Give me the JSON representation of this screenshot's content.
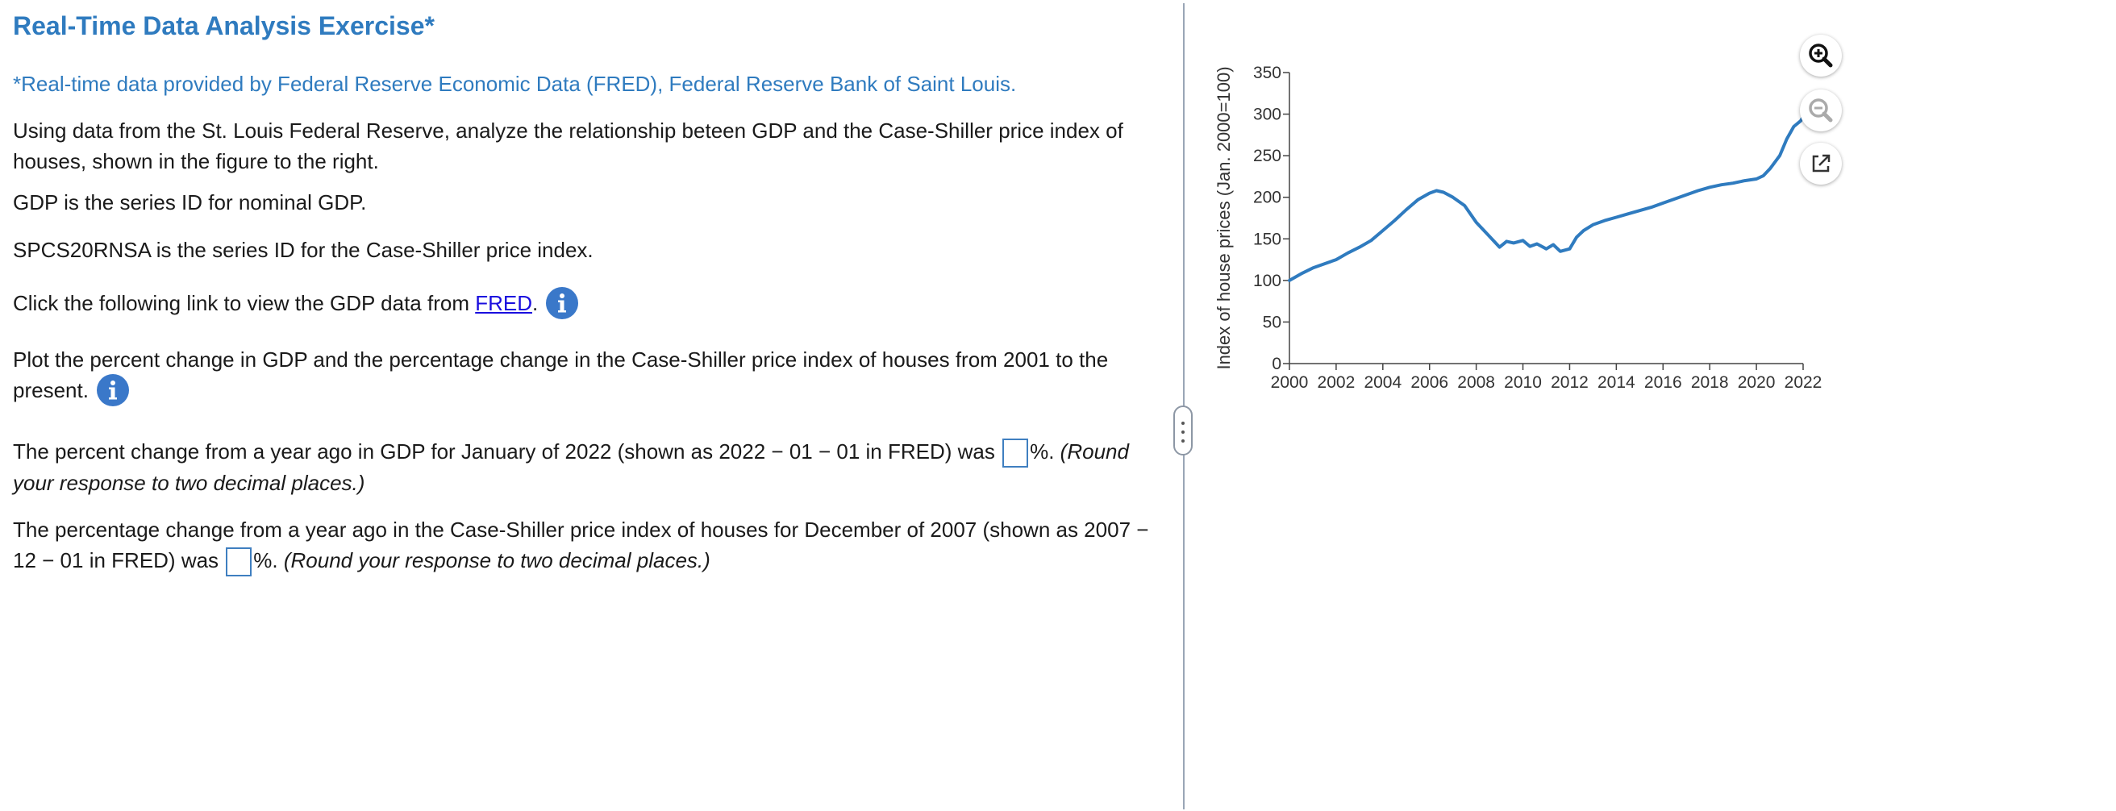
{
  "exercise": {
    "title": "Real-Time Data Analysis Exercise*",
    "source_note": "*Real-time data provided by Federal Reserve Economic Data (FRED), Federal Reserve Bank of Saint Louis.",
    "intro": "Using data from the St. Louis Federal Reserve, analyze the relationship beteen GDP and the Case-Shiller price index of houses, shown in the figure to the right.",
    "gdp_note": "GDP is the series ID for nominal GDP.",
    "spcs_note": "SPCS20RNSA is the series ID for the Case-Shiller price index.",
    "link_prefix": "Click the following link to view the GDP data from ",
    "link_text": "FRED",
    "link_suffix": ".",
    "plot_instruction": "Plot the percent change in GDP and the percentage change in the Case-Shiller price index of houses from 2001 to the present.",
    "q1_prefix": "The percent change from a year ago in GDP for January of 2022 (shown as 2022 − 01 − 01 in FRED) was ",
    "q1_unit": "%.",
    "q1_hint": "(Round your response to two decimal places.)",
    "q1_value": "",
    "q2_prefix": "The percentage change from a year ago in the Case-Shiller price index of houses for December of 2007 (shown as 2007 − 12 − 01 in FRED) was ",
    "q2_unit": "%.",
    "q2_hint": "(Round your response to two decimal places.)",
    "q2_value": ""
  },
  "icons": {
    "info": "info-icon",
    "zoom_in": "zoom-in-icon",
    "zoom_out": "zoom-out-icon",
    "popout": "external-window-icon",
    "splitter": "splitter-handle-icon"
  },
  "colors": {
    "title_blue": "#2f7bbf",
    "series_line": "#2f7bbf",
    "link": "#1a0dde",
    "info_icon": "#3a78c9"
  },
  "chart_data": {
    "type": "line",
    "title": "",
    "xlabel": "",
    "ylabel": "Index of house prices (Jan. 2000=100)",
    "xlim": [
      2000,
      2022
    ],
    "ylim": [
      0,
      350
    ],
    "x_ticks": [
      "2000",
      "2002",
      "2004",
      "2006",
      "2008",
      "2010",
      "2012",
      "2014",
      "2016",
      "2018",
      "2020",
      "2022"
    ],
    "y_ticks": [
      "0",
      "50",
      "100",
      "150",
      "200",
      "250",
      "300",
      "350"
    ],
    "grid": false,
    "series": [
      {
        "x": [
          2000,
          2000.5,
          2001,
          2001.5,
          2002,
          2002.5,
          2003,
          2003.5,
          2004,
          2004.5,
          2005,
          2005.5,
          2006,
          2006.3,
          2006.6,
          2007,
          2007.5,
          2008,
          2008.5,
          2009,
          2009.3,
          2009.6,
          2010,
          2010.3,
          2010.6,
          2011,
          2011.3,
          2011.6,
          2012,
          2012.3,
          2012.6,
          2013,
          2013.5,
          2014,
          2014.5,
          2015,
          2015.5,
          2016,
          2016.5,
          2017,
          2017.5,
          2018,
          2018.5,
          2019,
          2019.5,
          2020,
          2020.3,
          2020.6,
          2021,
          2021.3,
          2021.6,
          2021.9,
          2022
        ],
        "y": [
          100,
          108,
          115,
          120,
          125,
          133,
          140,
          148,
          160,
          172,
          185,
          197,
          205,
          208,
          206,
          200,
          190,
          170,
          155,
          140,
          147,
          145,
          148,
          141,
          144,
          138,
          143,
          135,
          138,
          152,
          160,
          167,
          172,
          176,
          180,
          184,
          188,
          193,
          198,
          203,
          208,
          212,
          215,
          217,
          220,
          222,
          226,
          235,
          250,
          270,
          285,
          292,
          297
        ]
      }
    ]
  }
}
